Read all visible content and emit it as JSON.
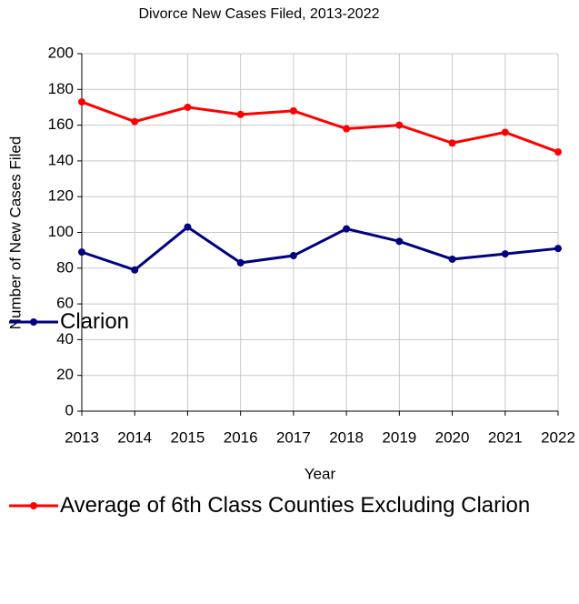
{
  "chart_data": {
    "type": "line",
    "title": "Divorce New Cases Filed, 2013-2022",
    "x_label": "Year",
    "y_label": "Number of New Cases Filed",
    "x": [
      2013,
      2014,
      2015,
      2016,
      2017,
      2018,
      2019,
      2020,
      2021,
      2022
    ],
    "xlim": [
      2013,
      2022
    ],
    "xticks": [
      2013,
      2014,
      2015,
      2016,
      2017,
      2018,
      2019,
      2020,
      2021,
      2022
    ],
    "ylim": [
      0,
      200
    ],
    "yticks": [
      0,
      20,
      40,
      60,
      80,
      100,
      120,
      140,
      160,
      180,
      200
    ],
    "grid": true,
    "legend": "bottom",
    "series": [
      {
        "name": "Clarion",
        "color": "#000080",
        "values": [
          89,
          79,
          103,
          83,
          87,
          102,
          95,
          85,
          88,
          91
        ]
      },
      {
        "name": "Average of 6th Class Counties Excluding Clarion",
        "color": "#ff0000",
        "values": [
          173,
          162,
          170,
          166,
          168,
          158,
          160,
          150,
          156,
          145
        ]
      }
    ]
  }
}
